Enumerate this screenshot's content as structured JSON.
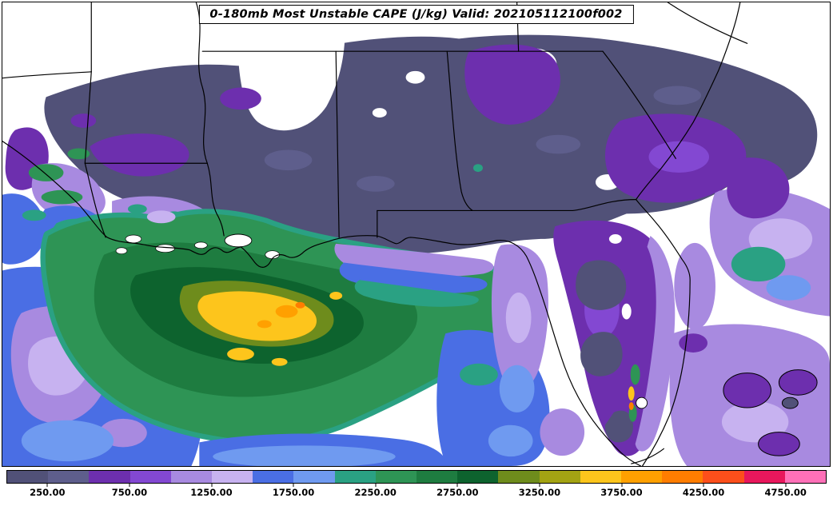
{
  "figure": {
    "title": "0-180mb Most Unstable CAPE (J/kg) Valid: 202105112100f002",
    "background": "#ffffff",
    "border_color": "#000000"
  },
  "colorbar": {
    "min": 0,
    "max": 5000,
    "interval": 250,
    "segment_colors": [
      "#515178",
      "#5e5e8c",
      "#6d2fae",
      "#8348d2",
      "#a88ae0",
      "#c7b2f0",
      "#4a6ee4",
      "#6f9af0",
      "#2aa183",
      "#2e9455",
      "#1e7c40",
      "#0d632e",
      "#6e8c1c",
      "#a3a313",
      "#fdc51c",
      "#ffa000",
      "#ff7d00",
      "#fc4f1b",
      "#e8175c",
      "#ff70b8"
    ],
    "ticks": [
      {
        "value": 250,
        "label": "250.00"
      },
      {
        "value": 750,
        "label": "750.00"
      },
      {
        "value": 1250,
        "label": "1250.00"
      },
      {
        "value": 1750,
        "label": "1750.00"
      },
      {
        "value": 2250,
        "label": "2250.00"
      },
      {
        "value": 2750,
        "label": "2750.00"
      },
      {
        "value": 3250,
        "label": "3250.00"
      },
      {
        "value": 3750,
        "label": "3750.00"
      },
      {
        "value": 4250,
        "label": "4250.00"
      },
      {
        "value": 4750,
        "label": "4750.00"
      }
    ]
  }
}
